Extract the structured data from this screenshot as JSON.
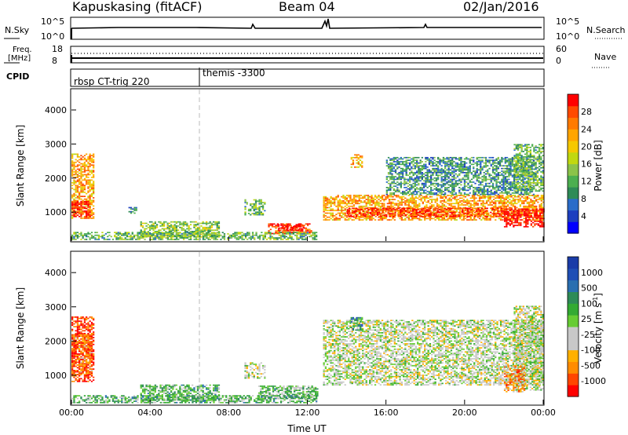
{
  "header": {
    "station": "Kapuskasing (fitACF)",
    "beam": "Beam 04",
    "date": "02/Jan/2016"
  },
  "top_panels": {
    "nsky_label": "N.Sky",
    "nsearch_label": "N.Search",
    "nsky_ticks": [
      "10^5",
      "10^0"
    ],
    "nsearch_ticks": [
      "10^5",
      "10^0"
    ],
    "freq_label_1": "Freq.",
    "freq_label_2": "[MHz]",
    "freq_ticks": [
      "18",
      "8"
    ],
    "nave_label": "Nave",
    "nave_ticks": [
      "60",
      "0"
    ],
    "cpid_label": "CPID",
    "cpid_entries": [
      {
        "label": "rbsp CT-trig 220",
        "start_hour": 0
      },
      {
        "label": "themis -3300",
        "start_hour": 6.5
      }
    ]
  },
  "chart_data": [
    {
      "type": "heatmap",
      "name": "power",
      "xlabel": "Time UT",
      "ylabel": "Slant Range [km]",
      "xlim": [
        0,
        24
      ],
      "ylim": [
        150,
        4600
      ],
      "xtick_labels": [
        "00:00",
        "04:00",
        "08:00",
        "12:00",
        "16:00",
        "20:00",
        "00:00"
      ],
      "ytick_labels": [
        "1000",
        "2000",
        "3000",
        "4000"
      ],
      "colorbar": {
        "label": "Power [dB]",
        "ticks": [
          "28",
          "24",
          "20",
          "16",
          "12",
          "8",
          "4"
        ],
        "colors": [
          "#0000ff",
          "#1d3fbf",
          "#2a6cc9",
          "#2e8b57",
          "#4caf50",
          "#8bc34a",
          "#c0d810",
          "#f5c800",
          "#ffa500",
          "#ff7a00",
          "#ff4a00",
          "#ff0000"
        ]
      },
      "regions": [
        {
          "t0": 0.0,
          "t1": 1.1,
          "r0": 800,
          "r1": 2700,
          "level": 0.72
        },
        {
          "t0": 0.0,
          "t1": 0.9,
          "r0": 850,
          "r1": 1300,
          "level": 0.95
        },
        {
          "t0": 2.9,
          "t1": 3.3,
          "r0": 950,
          "r1": 1150,
          "level": 0.3
        },
        {
          "t0": 3.5,
          "t1": 7.5,
          "r0": 250,
          "r1": 700,
          "level": 0.45
        },
        {
          "t0": 8.8,
          "t1": 9.8,
          "r0": 900,
          "r1": 1350,
          "level": 0.4
        },
        {
          "t0": 10.0,
          "t1": 12.2,
          "r0": 350,
          "r1": 650,
          "level": 0.9
        },
        {
          "t0": 10.5,
          "t1": 11.8,
          "r0": 450,
          "r1": 650,
          "level": 1.0
        },
        {
          "t0": 0.0,
          "t1": 12.5,
          "r0": 180,
          "r1": 400,
          "level": 0.4
        },
        {
          "t0": 12.8,
          "t1": 24.0,
          "r0": 750,
          "r1": 1500,
          "level": 0.72
        },
        {
          "t0": 14.0,
          "t1": 22.0,
          "r0": 850,
          "r1": 1100,
          "level": 0.9
        },
        {
          "t0": 14.2,
          "t1": 14.8,
          "r0": 2300,
          "r1": 2700,
          "level": 0.7
        },
        {
          "t0": 16.0,
          "t1": 23.5,
          "r0": 1500,
          "r1": 2600,
          "level": 0.3
        },
        {
          "t0": 22.0,
          "t1": 24.0,
          "r0": 550,
          "r1": 1100,
          "level": 1.0
        },
        {
          "t0": 22.5,
          "t1": 24.0,
          "r0": 1600,
          "r1": 3000,
          "level": 0.4
        }
      ]
    },
    {
      "type": "heatmap",
      "name": "velocity",
      "xlabel": "Time UT",
      "ylabel": "Slant Range [km]",
      "xlim": [
        0,
        24
      ],
      "ylim": [
        150,
        4600
      ],
      "xtick_labels": [
        "00:00",
        "04:00",
        "08:00",
        "12:00",
        "16:00",
        "20:00",
        "00:00"
      ],
      "ytick_labels": [
        "1000",
        "2000",
        "3000",
        "4000"
      ],
      "colorbar": {
        "label": "Velocity [m s",
        "label_superscript": "-1",
        "label_close": "]",
        "ticks": [
          "1000",
          "500",
          "100",
          "25",
          "-25",
          "-100",
          "-500",
          "-1000"
        ],
        "colors": [
          "#ff0000",
          "#ff4500",
          "#ff8c00",
          "#ffb000",
          "#c8c8c8",
          "#c8c8c8",
          "#66cc33",
          "#33aa33",
          "#2e8b57",
          "#2a6fb0",
          "#1f4fb5",
          "#1a3ca8"
        ]
      },
      "regions": [
        {
          "t0": 0.0,
          "t1": 1.1,
          "r0": 800,
          "r1": 2700,
          "level": 0.08
        },
        {
          "t0": 0.0,
          "t1": 1.0,
          "r0": 1000,
          "r1": 2200,
          "level": 0.18
        },
        {
          "t0": 3.5,
          "t1": 7.5,
          "r0": 250,
          "r1": 700,
          "level": 0.6
        },
        {
          "t0": 8.8,
          "t1": 9.8,
          "r0": 900,
          "r1": 1350,
          "level": 0.45
        },
        {
          "t0": 9.5,
          "t1": 12.5,
          "r0": 300,
          "r1": 700,
          "level": 0.58
        },
        {
          "t0": 0.0,
          "t1": 12.5,
          "r0": 180,
          "r1": 400,
          "level": 0.6
        },
        {
          "t0": 12.8,
          "t1": 24.0,
          "r0": 700,
          "r1": 2600,
          "level": 0.45
        },
        {
          "t0": 14.2,
          "t1": 14.8,
          "r0": 2300,
          "r1": 2700,
          "level": 0.72
        },
        {
          "t0": 22.5,
          "t1": 24.0,
          "r0": 550,
          "r1": 3000,
          "level": 0.45
        },
        {
          "t0": 22.0,
          "t1": 23.0,
          "r0": 500,
          "r1": 1300,
          "level": 0.25
        }
      ]
    }
  ]
}
